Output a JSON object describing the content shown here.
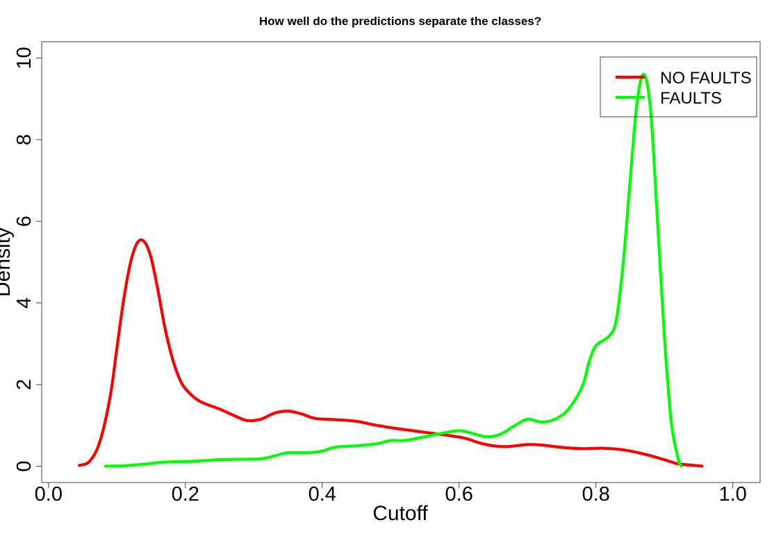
{
  "chart_data": {
    "type": "line",
    "title": "How well do the predictions separate the classes?",
    "xlabel": "Cutoff",
    "ylabel": "Density",
    "xlim": [
      -0.01,
      1.04
    ],
    "ylim": [
      -0.4,
      10.4
    ],
    "xticks": [
      "0.0",
      "0.2",
      "0.4",
      "0.6",
      "0.8",
      "1.0"
    ],
    "yticks": [
      "0",
      "2",
      "4",
      "6",
      "8",
      "10"
    ],
    "grid": false,
    "legend_position": "top-right",
    "series": [
      {
        "name": "NO FAULTS",
        "color": "#ff0000",
        "points": [
          [
            0.045,
            0.02
          ],
          [
            0.06,
            0.12
          ],
          [
            0.075,
            0.6
          ],
          [
            0.09,
            1.7
          ],
          [
            0.1,
            2.9
          ],
          [
            0.11,
            4.1
          ],
          [
            0.12,
            5.0
          ],
          [
            0.13,
            5.48
          ],
          [
            0.14,
            5.5
          ],
          [
            0.15,
            5.1
          ],
          [
            0.16,
            4.3
          ],
          [
            0.17,
            3.4
          ],
          [
            0.18,
            2.7
          ],
          [
            0.19,
            2.2
          ],
          [
            0.2,
            1.9
          ],
          [
            0.22,
            1.6
          ],
          [
            0.25,
            1.4
          ],
          [
            0.27,
            1.25
          ],
          [
            0.29,
            1.12
          ],
          [
            0.31,
            1.15
          ],
          [
            0.33,
            1.3
          ],
          [
            0.35,
            1.35
          ],
          [
            0.37,
            1.28
          ],
          [
            0.39,
            1.17
          ],
          [
            0.42,
            1.14
          ],
          [
            0.45,
            1.1
          ],
          [
            0.48,
            1.0
          ],
          [
            0.51,
            0.92
          ],
          [
            0.55,
            0.83
          ],
          [
            0.59,
            0.74
          ],
          [
            0.61,
            0.68
          ],
          [
            0.63,
            0.57
          ],
          [
            0.65,
            0.5
          ],
          [
            0.67,
            0.48
          ],
          [
            0.7,
            0.53
          ],
          [
            0.72,
            0.52
          ],
          [
            0.75,
            0.46
          ],
          [
            0.78,
            0.43
          ],
          [
            0.81,
            0.44
          ],
          [
            0.84,
            0.4
          ],
          [
            0.87,
            0.3
          ],
          [
            0.9,
            0.16
          ],
          [
            0.92,
            0.06
          ],
          [
            0.95,
            0.01
          ],
          [
            0.955,
            0.0
          ]
        ]
      },
      {
        "name": "FAULTS",
        "color": "#00ff00",
        "points": [
          [
            0.083,
            0.0
          ],
          [
            0.11,
            0.01
          ],
          [
            0.14,
            0.05
          ],
          [
            0.17,
            0.1
          ],
          [
            0.21,
            0.12
          ],
          [
            0.25,
            0.16
          ],
          [
            0.28,
            0.17
          ],
          [
            0.31,
            0.18
          ],
          [
            0.33,
            0.25
          ],
          [
            0.35,
            0.33
          ],
          [
            0.38,
            0.33
          ],
          [
            0.4,
            0.37
          ],
          [
            0.42,
            0.47
          ],
          [
            0.45,
            0.5
          ],
          [
            0.48,
            0.55
          ],
          [
            0.5,
            0.63
          ],
          [
            0.52,
            0.63
          ],
          [
            0.55,
            0.72
          ],
          [
            0.57,
            0.79
          ],
          [
            0.6,
            0.87
          ],
          [
            0.62,
            0.8
          ],
          [
            0.64,
            0.72
          ],
          [
            0.66,
            0.78
          ],
          [
            0.68,
            0.98
          ],
          [
            0.7,
            1.15
          ],
          [
            0.72,
            1.08
          ],
          [
            0.74,
            1.15
          ],
          [
            0.76,
            1.4
          ],
          [
            0.78,
            1.95
          ],
          [
            0.79,
            2.55
          ],
          [
            0.8,
            2.95
          ],
          [
            0.82,
            3.2
          ],
          [
            0.83,
            3.6
          ],
          [
            0.84,
            5.0
          ],
          [
            0.85,
            7.0
          ],
          [
            0.86,
            8.9
          ],
          [
            0.87,
            9.6
          ],
          [
            0.88,
            8.7
          ],
          [
            0.89,
            6.0
          ],
          [
            0.9,
            3.2
          ],
          [
            0.91,
            1.1
          ],
          [
            0.92,
            0.2
          ],
          [
            0.925,
            0.0
          ]
        ]
      }
    ]
  }
}
